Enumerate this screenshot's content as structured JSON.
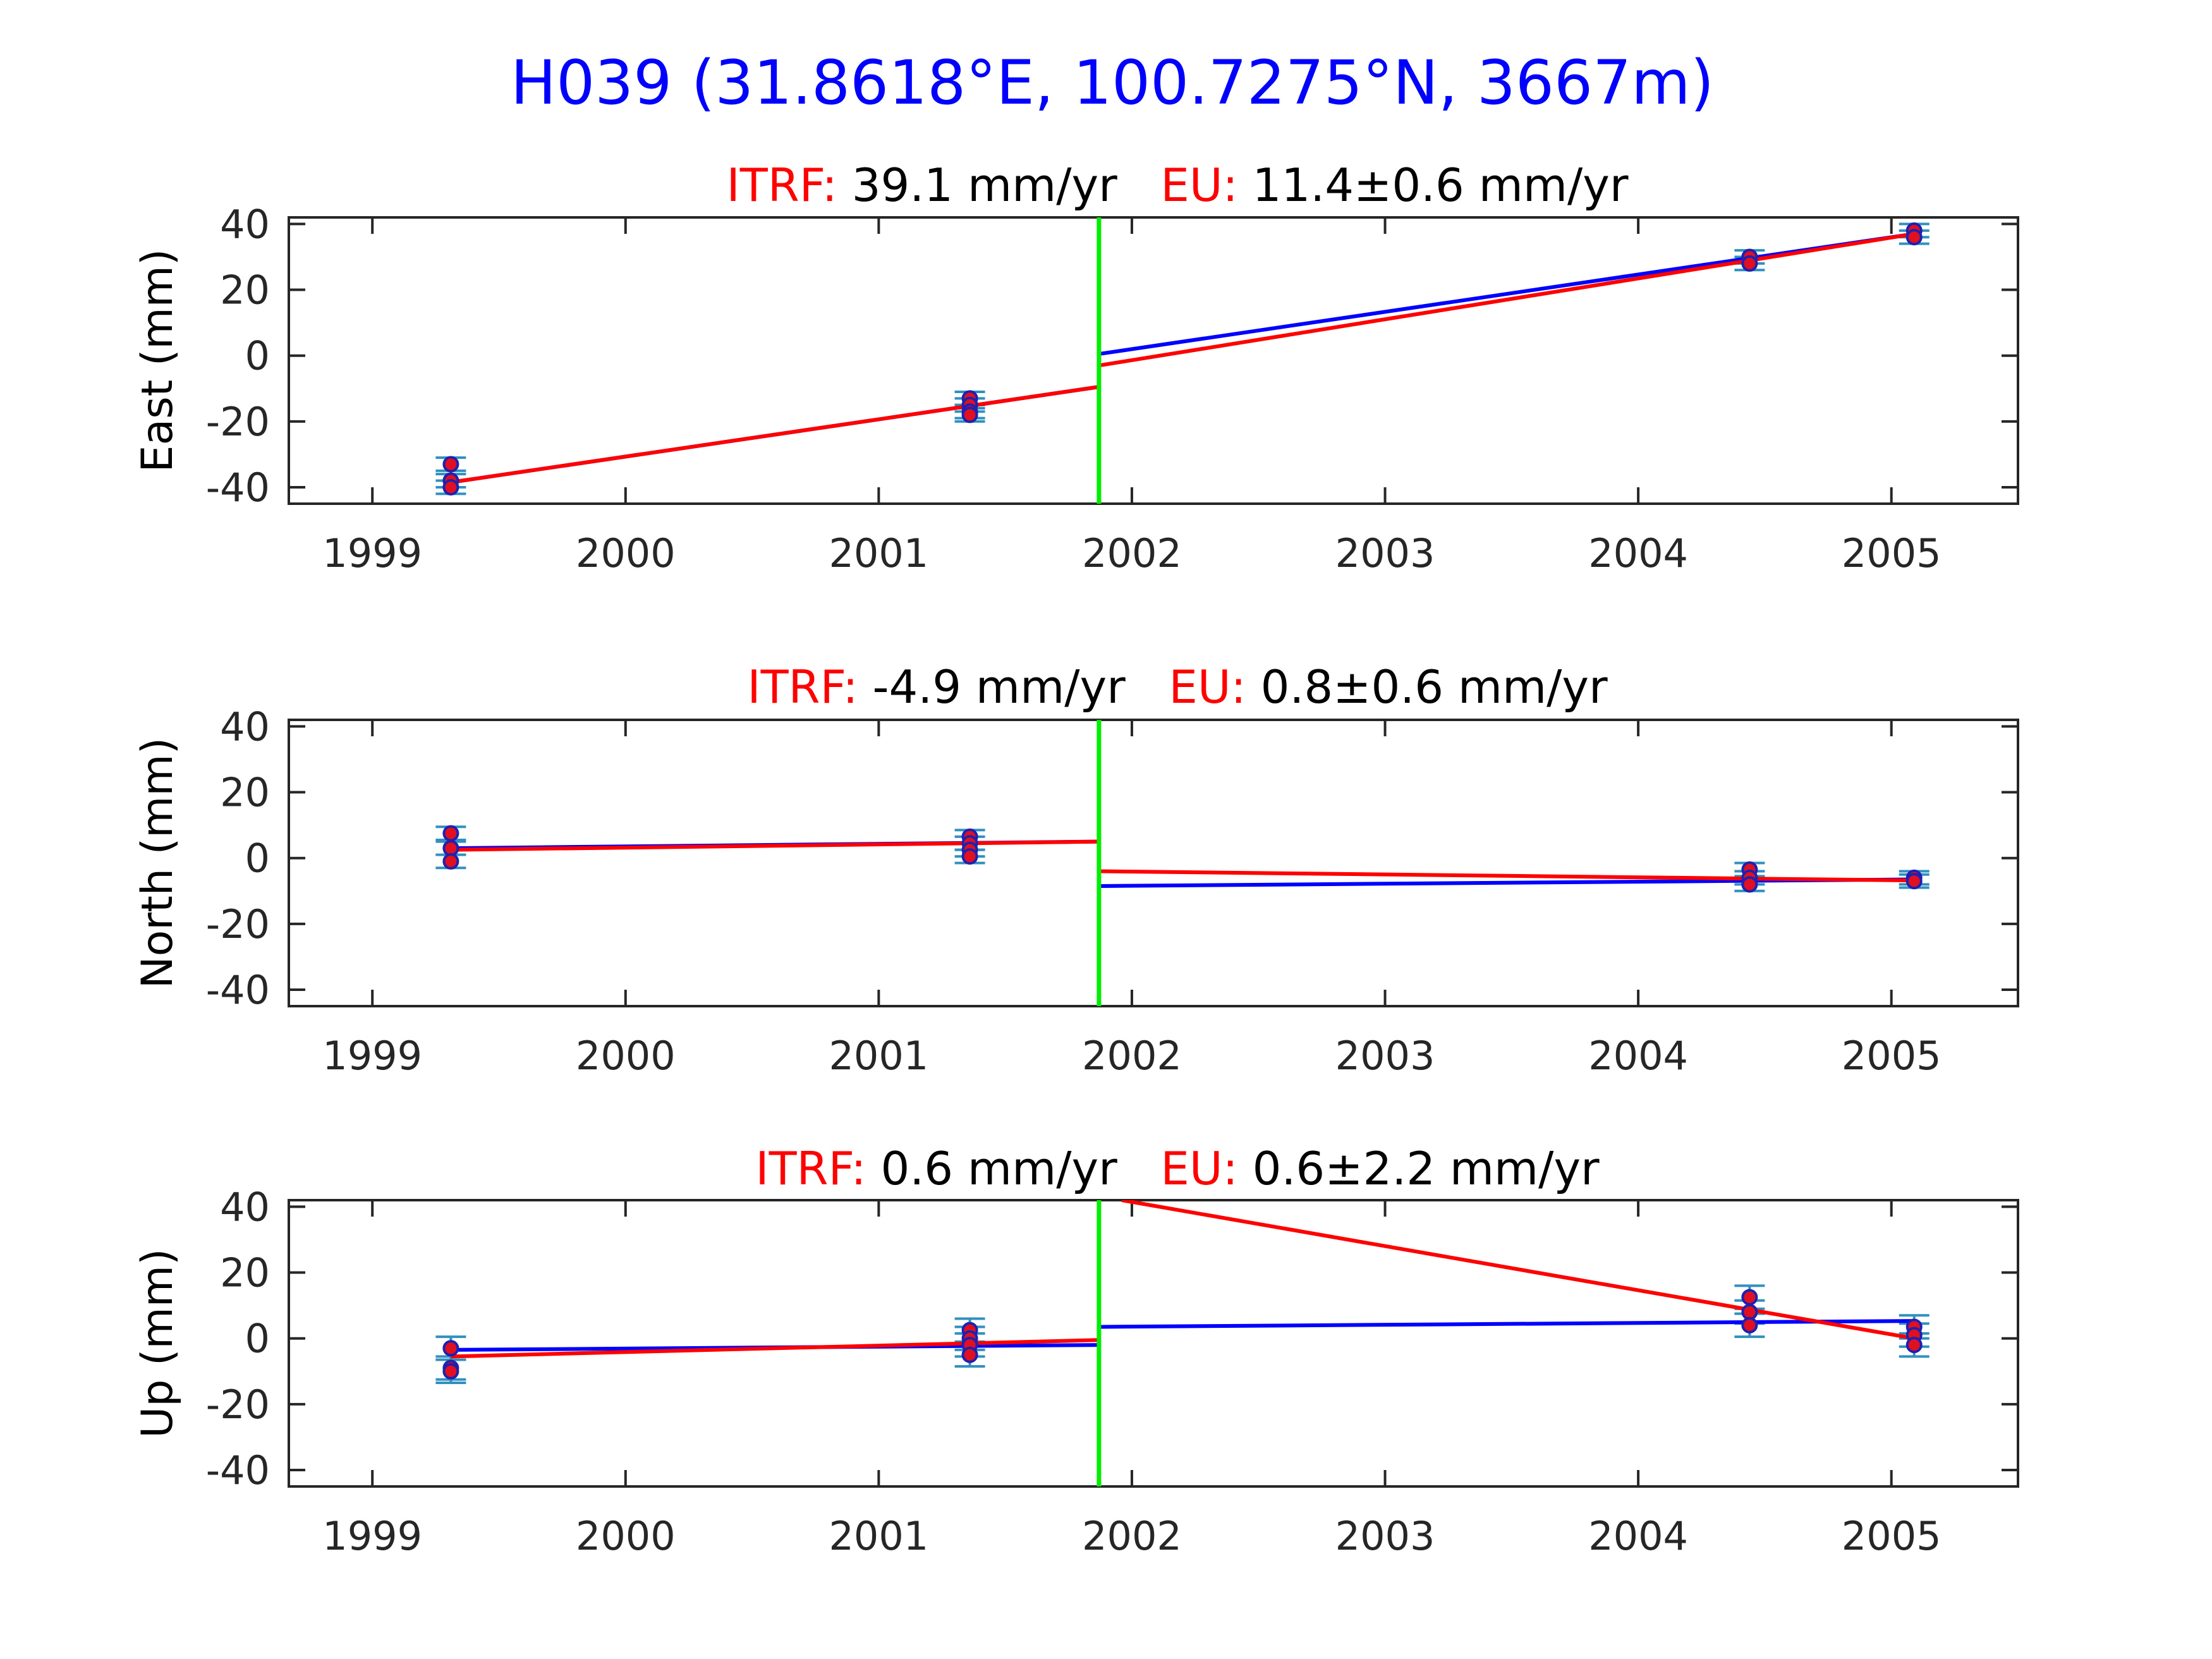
{
  "figure": {
    "title": "H039 (31.8618°E, 100.7275°N, 3667m)",
    "colors": {
      "title": "#0000ff",
      "label_red": "#ff0000",
      "model_line": "#ff0000",
      "fit_line": "#0000ff",
      "event_line": "#00ee00",
      "points": "#2020b0",
      "point_fill": "#e01020",
      "errorbar": "#3090c0",
      "axis": "#262626"
    }
  },
  "chart_data": [
    {
      "type": "scatter",
      "title_parts": [
        {
          "text": "ITRF:",
          "color": "red"
        },
        {
          "text": "39.1 mm/yr",
          "color": "black"
        },
        {
          "text": "EU:",
          "color": "red"
        },
        {
          "text": "11.4±0.6 mm/yr",
          "color": "black"
        }
      ],
      "ylabel": "East (mm)",
      "xlim": [
        1998.67,
        2005.5
      ],
      "ylim": [
        -45,
        42
      ],
      "xticks": [
        1999,
        2000,
        2001,
        2002,
        2003,
        2004,
        2005
      ],
      "yticks": [
        -40,
        -20,
        0,
        20,
        40
      ],
      "event_x": 2001.87,
      "points": [
        {
          "x": 1999.31,
          "y": -33,
          "err": 2
        },
        {
          "x": 1999.31,
          "y": -38,
          "err": 2
        },
        {
          "x": 1999.31,
          "y": -40,
          "err": 2
        },
        {
          "x": 2001.36,
          "y": -13,
          "err": 2
        },
        {
          "x": 2001.36,
          "y": -15,
          "err": 2
        },
        {
          "x": 2001.36,
          "y": -17,
          "err": 2
        },
        {
          "x": 2001.36,
          "y": -18,
          "err": 2
        },
        {
          "x": 2004.44,
          "y": 30,
          "err": 2
        },
        {
          "x": 2004.44,
          "y": 28,
          "err": 2
        },
        {
          "x": 2005.09,
          "y": 38,
          "err": 2
        },
        {
          "x": 2005.09,
          "y": 36,
          "err": 2
        }
      ],
      "lines": [
        {
          "color": "blue",
          "x": [
            1999.31,
            2001.87
          ],
          "y": [
            -38.5,
            -9.5
          ]
        },
        {
          "color": "blue",
          "x": [
            2001.87,
            2005.09
          ],
          "y": [
            0.5,
            37
          ]
        },
        {
          "color": "red",
          "x": [
            1999.31,
            2001.87
          ],
          "y": [
            -38.5,
            -9.5
          ]
        },
        {
          "color": "red",
          "x": [
            2001.87,
            2005.09
          ],
          "y": [
            -3,
            37
          ]
        }
      ]
    },
    {
      "type": "scatter",
      "title_parts": [
        {
          "text": "ITRF:",
          "color": "red"
        },
        {
          "text": "-4.9 mm/yr",
          "color": "black"
        },
        {
          "text": "EU:",
          "color": "red"
        },
        {
          "text": "0.8±0.6 mm/yr",
          "color": "black"
        }
      ],
      "ylabel": "North (mm)",
      "xlim": [
        1998.67,
        2005.5
      ],
      "ylim": [
        -45,
        42
      ],
      "xticks": [
        1999,
        2000,
        2001,
        2002,
        2003,
        2004,
        2005
      ],
      "yticks": [
        -40,
        -20,
        0,
        20,
        40
      ],
      "event_x": 2001.87,
      "points": [
        {
          "x": 1999.31,
          "y": 7.5,
          "err": 2
        },
        {
          "x": 1999.31,
          "y": 3,
          "err": 2
        },
        {
          "x": 1999.31,
          "y": -1,
          "err": 2
        },
        {
          "x": 2001.36,
          "y": 6.5,
          "err": 2
        },
        {
          "x": 2001.36,
          "y": 4.5,
          "err": 2
        },
        {
          "x": 2001.36,
          "y": 2.5,
          "err": 2
        },
        {
          "x": 2001.36,
          "y": 0.5,
          "err": 2
        },
        {
          "x": 2004.44,
          "y": -3.5,
          "err": 2
        },
        {
          "x": 2004.44,
          "y": -6,
          "err": 2
        },
        {
          "x": 2004.44,
          "y": -8,
          "err": 2
        },
        {
          "x": 2005.09,
          "y": -6,
          "err": 2
        },
        {
          "x": 2005.09,
          "y": -7,
          "err": 2
        }
      ],
      "lines": [
        {
          "color": "blue",
          "x": [
            1999.31,
            2001.87
          ],
          "y": [
            3,
            5
          ]
        },
        {
          "color": "blue",
          "x": [
            2001.87,
            2005.09
          ],
          "y": [
            -8.5,
            -6.5
          ]
        },
        {
          "color": "red",
          "x": [
            1999.31,
            2001.87
          ],
          "y": [
            2.5,
            5
          ]
        },
        {
          "color": "red",
          "x": [
            2001.87,
            2005.09
          ],
          "y": [
            -4,
            -6.8
          ]
        }
      ]
    },
    {
      "type": "scatter",
      "title_parts": [
        {
          "text": "ITRF:",
          "color": "red"
        },
        {
          "text": "0.6 mm/yr",
          "color": "black"
        },
        {
          "text": "EU:",
          "color": "red"
        },
        {
          "text": "0.6±2.2 mm/yr",
          "color": "black"
        }
      ],
      "ylabel": "Up (mm)",
      "xlim": [
        1998.67,
        2005.5
      ],
      "ylim": [
        -45,
        42
      ],
      "xticks": [
        1999,
        2000,
        2001,
        2002,
        2003,
        2004,
        2005
      ],
      "yticks": [
        -40,
        -20,
        0,
        20,
        40
      ],
      "event_x": 2001.87,
      "points": [
        {
          "x": 1999.31,
          "y": -3,
          "err": 3.5
        },
        {
          "x": 1999.31,
          "y": -9,
          "err": 3.5
        },
        {
          "x": 1999.31,
          "y": -10,
          "err": 3.5
        },
        {
          "x": 2001.36,
          "y": 2.5,
          "err": 3.5
        },
        {
          "x": 2001.36,
          "y": 0,
          "err": 3.5
        },
        {
          "x": 2001.36,
          "y": -2,
          "err": 3.5
        },
        {
          "x": 2001.36,
          "y": -5,
          "err": 3.5
        },
        {
          "x": 2004.44,
          "y": 12.5,
          "err": 3.5
        },
        {
          "x": 2004.44,
          "y": 8,
          "err": 3.5
        },
        {
          "x": 2004.44,
          "y": 4,
          "err": 3.5
        },
        {
          "x": 2005.09,
          "y": 3.5,
          "err": 3.5
        },
        {
          "x": 2005.09,
          "y": 1,
          "err": 3.5
        },
        {
          "x": 2005.09,
          "y": -2,
          "err": 3.5
        }
      ],
      "lines": [
        {
          "color": "blue",
          "x": [
            1999.31,
            2001.87
          ],
          "y": [
            -3.5,
            -2
          ]
        },
        {
          "color": "blue",
          "x": [
            2001.87,
            2005.09
          ],
          "y": [
            3.5,
            5.3
          ]
        },
        {
          "color": "red",
          "x": [
            1999.31,
            2001.87
          ],
          "y": [
            -5.5,
            -0.5
          ]
        },
        {
          "color": "red",
          "x": [
            2001.96,
            2005.09
          ],
          "y": [
            42,
            0
          ]
        }
      ]
    }
  ]
}
